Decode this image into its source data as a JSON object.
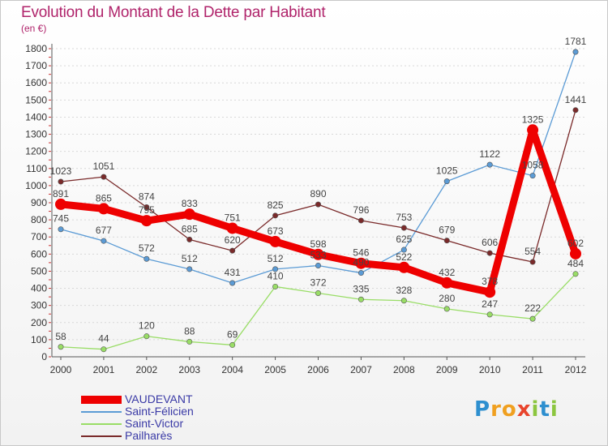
{
  "title": "Evolution du Montant de la Dette par Habitant",
  "unit_label": "(en €)",
  "logo": {
    "letters": [
      "P",
      "r",
      "o",
      "x",
      "i",
      "t",
      "i"
    ],
    "colors": [
      "#2e8fcf",
      "#f0a020",
      "#f0a020",
      "#e8442c",
      "#8cc63f",
      "#2e8fcf",
      "#8cc63f"
    ]
  },
  "chart_data": {
    "type": "line",
    "title": "Evolution du Montant de la Dette par Habitant",
    "ylabel": "(en €)",
    "xlabel": "",
    "x": [
      "2000",
      "2001",
      "2002",
      "2003",
      "2004",
      "2005",
      "2006",
      "2007",
      "2008",
      "2009",
      "2010",
      "2011",
      "2012"
    ],
    "ylim": [
      0,
      1800
    ],
    "yticks": [
      0,
      100,
      200,
      300,
      400,
      500,
      600,
      700,
      800,
      900,
      1000,
      1100,
      1200,
      1300,
      1400,
      1500,
      1600,
      1700,
      1800
    ],
    "grid": true,
    "legend_position": "bottom-left",
    "series": [
      {
        "name": "VAUDEVANT",
        "color": "#ee0000",
        "values": [
          891,
          865,
          795,
          833,
          751,
          673,
          598,
          546,
          522,
          432,
          378,
          1325,
          602
        ]
      },
      {
        "name": "Saint-Félicien",
        "color": "#5b9bd5",
        "values": [
          745,
          677,
          572,
          512,
          431,
          512,
          533,
          490,
          625,
          1025,
          1122,
          1058,
          1781
        ]
      },
      {
        "name": "Saint-Victor",
        "color": "#99dd66",
        "values": [
          58,
          44,
          120,
          88,
          69,
          410,
          372,
          335,
          328,
          280,
          247,
          222,
          484
        ]
      },
      {
        "name": "Pailharès",
        "color": "#7a2a2a",
        "values": [
          1023,
          1051,
          874,
          685,
          620,
          825,
          890,
          796,
          753,
          679,
          606,
          554,
          1441
        ]
      }
    ],
    "data_labels": [
      [
        "891",
        "865",
        "795",
        "833",
        "751",
        "673",
        "598",
        "546",
        "522",
        "432",
        "378",
        "1325",
        "602"
      ],
      [
        "745",
        "677",
        "572",
        "512",
        "431",
        "512",
        "533",
        "490",
        "625",
        "1025",
        "1122",
        "1058",
        "1781"
      ],
      [
        "58",
        "44",
        "120",
        "88",
        "69",
        "410",
        "372",
        "335",
        "328",
        "280",
        "247",
        "222",
        "484"
      ],
      [
        "1023",
        "1051",
        "874",
        "685",
        "620",
        "825",
        "890",
        "796",
        "753",
        "679",
        "606",
        "554",
        "1441"
      ]
    ]
  }
}
